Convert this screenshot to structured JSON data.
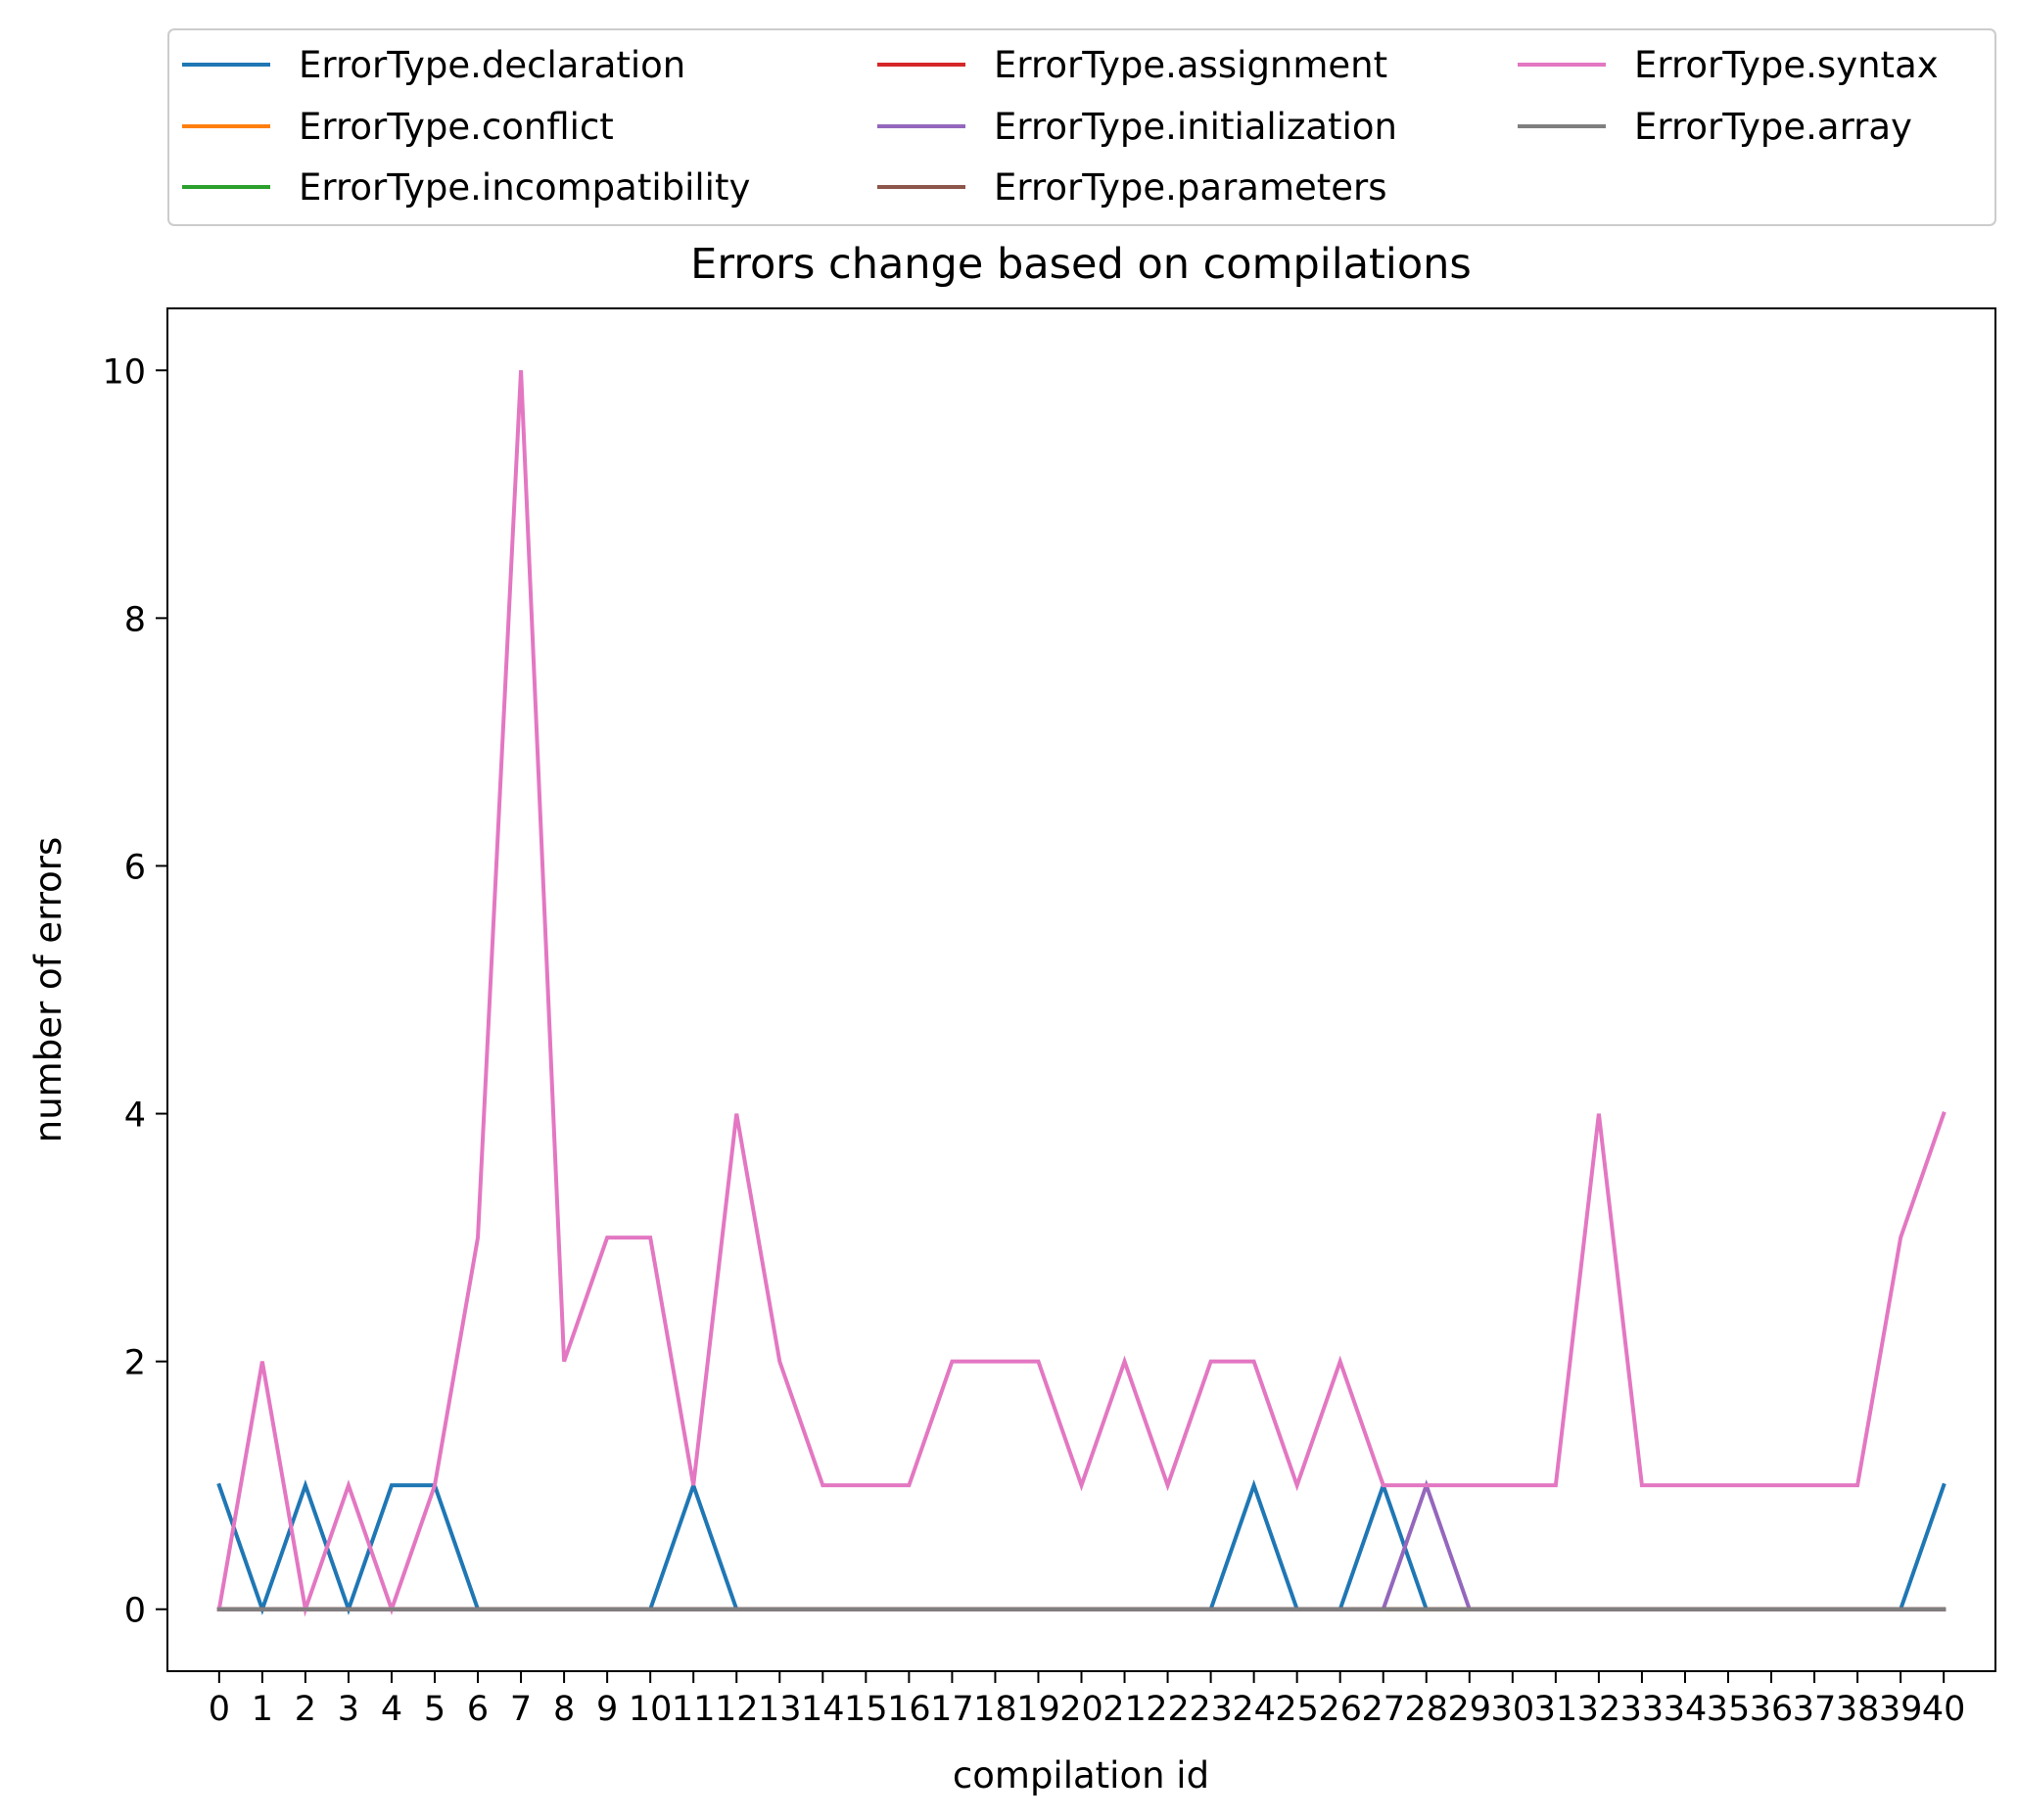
{
  "chart_data": {
    "type": "line",
    "title": "Errors change based on compilations",
    "xlabel": "compilation id",
    "ylabel": "number of errors",
    "xlim": [
      -1.2,
      41.2
    ],
    "ylim": [
      -0.5,
      10.5
    ],
    "x": [
      0,
      1,
      2,
      3,
      4,
      5,
      6,
      7,
      8,
      9,
      10,
      11,
      12,
      13,
      14,
      15,
      16,
      17,
      18,
      19,
      20,
      21,
      22,
      23,
      24,
      25,
      26,
      27,
      28,
      29,
      30,
      31,
      32,
      33,
      34,
      35,
      36,
      37,
      38,
      39,
      40
    ],
    "xticks": [
      "0",
      "1",
      "2",
      "3",
      "4",
      "5",
      "6",
      "7",
      "8",
      "9",
      "10",
      "11",
      "12",
      "13",
      "14",
      "15",
      "16",
      "17",
      "18",
      "19",
      "20",
      "21",
      "22",
      "23",
      "24",
      "25",
      "26",
      "27",
      "28",
      "29",
      "30",
      "31",
      "32",
      "33",
      "34",
      "35",
      "36",
      "37",
      "38",
      "39",
      "40"
    ],
    "yticks": [
      0,
      2,
      4,
      6,
      8,
      10
    ],
    "ytick_labels": [
      "0",
      "2",
      "4",
      "6",
      "8",
      "10"
    ],
    "grid": false,
    "legend_position": "above-plot",
    "legend_columns": 3,
    "series": [
      {
        "name": "ErrorType.declaration",
        "color": "#1f77b4",
        "values": [
          1,
          0,
          1,
          0,
          1,
          1,
          0,
          0,
          0,
          0,
          0,
          1,
          0,
          0,
          0,
          0,
          0,
          0,
          0,
          0,
          0,
          0,
          0,
          0,
          1,
          0,
          0,
          1,
          0,
          0,
          0,
          0,
          0,
          0,
          0,
          0,
          0,
          0,
          0,
          0,
          1
        ]
      },
      {
        "name": "ErrorType.conflict",
        "color": "#ff7f0e",
        "values": [
          0,
          0,
          0,
          0,
          0,
          0,
          0,
          0,
          0,
          0,
          0,
          0,
          0,
          0,
          0,
          0,
          0,
          0,
          0,
          0,
          0,
          0,
          0,
          0,
          0,
          0,
          0,
          0,
          0,
          0,
          0,
          0,
          0,
          0,
          0,
          0,
          0,
          0,
          0,
          0,
          0
        ]
      },
      {
        "name": "ErrorType.incompatibility",
        "color": "#2ca02c",
        "values": [
          0,
          0,
          0,
          0,
          0,
          0,
          0,
          0,
          0,
          0,
          0,
          0,
          0,
          0,
          0,
          0,
          0,
          0,
          0,
          0,
          0,
          0,
          0,
          0,
          0,
          0,
          0,
          0,
          0,
          0,
          0,
          0,
          0,
          0,
          0,
          0,
          0,
          0,
          0,
          0,
          0
        ]
      },
      {
        "name": "ErrorType.assignment",
        "color": "#d62728",
        "values": [
          0,
          0,
          0,
          0,
          0,
          0,
          0,
          0,
          0,
          0,
          0,
          0,
          0,
          0,
          0,
          0,
          0,
          0,
          0,
          0,
          0,
          0,
          0,
          0,
          0,
          0,
          0,
          0,
          0,
          0,
          0,
          0,
          0,
          0,
          0,
          0,
          0,
          0,
          0,
          0,
          0
        ]
      },
      {
        "name": "ErrorType.initialization",
        "color": "#9467bd",
        "values": [
          0,
          0,
          0,
          0,
          0,
          0,
          0,
          0,
          0,
          0,
          0,
          0,
          0,
          0,
          0,
          0,
          0,
          0,
          0,
          0,
          0,
          0,
          0,
          0,
          0,
          0,
          0,
          0,
          1,
          0,
          0,
          0,
          0,
          0,
          0,
          0,
          0,
          0,
          0,
          0,
          0
        ]
      },
      {
        "name": "ErrorType.parameters",
        "color": "#8c564b",
        "values": [
          0,
          0,
          0,
          0,
          0,
          0,
          0,
          0,
          0,
          0,
          0,
          0,
          0,
          0,
          0,
          0,
          0,
          0,
          0,
          0,
          0,
          0,
          0,
          0,
          0,
          0,
          0,
          0,
          0,
          0,
          0,
          0,
          0,
          0,
          0,
          0,
          0,
          0,
          0,
          0,
          0
        ]
      },
      {
        "name": "ErrorType.syntax",
        "color": "#e377c2",
        "values": [
          0,
          2,
          0,
          1,
          0,
          1,
          3,
          10,
          2,
          3,
          3,
          1,
          4,
          2,
          1,
          1,
          1,
          2,
          2,
          2,
          1,
          2,
          1,
          2,
          2,
          1,
          2,
          1,
          1,
          1,
          1,
          1,
          4,
          1,
          1,
          1,
          1,
          1,
          1,
          3,
          4
        ]
      },
      {
        "name": "ErrorType.array",
        "color": "#7f7f7f",
        "values": [
          0,
          0,
          0,
          0,
          0,
          0,
          0,
          0,
          0,
          0,
          0,
          0,
          0,
          0,
          0,
          0,
          0,
          0,
          0,
          0,
          0,
          0,
          0,
          0,
          0,
          0,
          0,
          0,
          0,
          0,
          0,
          0,
          0,
          0,
          0,
          0,
          0,
          0,
          0,
          0,
          0
        ]
      }
    ]
  }
}
